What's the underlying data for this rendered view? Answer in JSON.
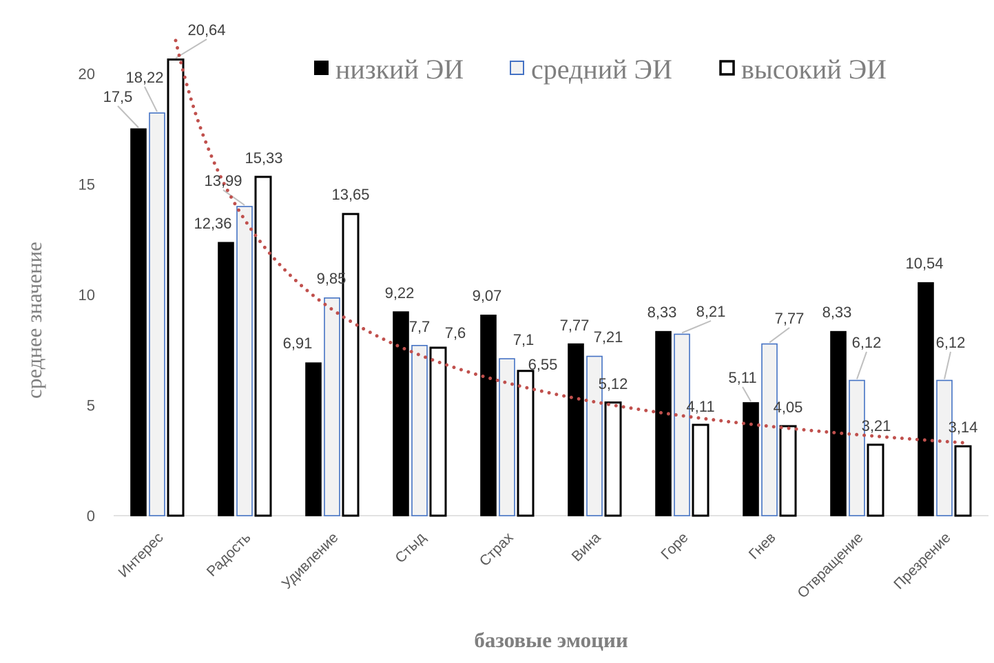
{
  "chart_data": {
    "type": "bar",
    "title": "",
    "xlabel": "базовые эмоции",
    "ylabel": "среднее значение",
    "ylim": [
      0,
      22
    ],
    "yticks": [
      0,
      5,
      10,
      15,
      20
    ],
    "grid": false,
    "legend_position": "top-right",
    "categories": [
      "Интерес",
      "Радость",
      "Удивление",
      "Стыд",
      "Страх",
      "Вина",
      "Горе",
      "Гнев",
      "Отвращение",
      "Презрение"
    ],
    "series": [
      {
        "name": "низкий ЭИ",
        "fill": "#000000",
        "stroke": "#000000",
        "values": [
          17.5,
          12.36,
          6.91,
          9.22,
          9.07,
          7.77,
          8.33,
          5.11,
          8.33,
          10.54
        ],
        "labels": [
          "17,5",
          "12,36",
          "6,91",
          "9,22",
          "9,07",
          "7,77",
          "8,33",
          "5,11",
          "8,33",
          "10,54"
        ]
      },
      {
        "name": "средний ЭИ",
        "fill": "#f2f2f2",
        "stroke": "#4472c4",
        "values": [
          18.22,
          13.99,
          9.85,
          7.7,
          7.1,
          7.21,
          8.21,
          7.77,
          6.12,
          6.12
        ],
        "labels": [
          "18,22",
          "13,99",
          "9,85",
          "7,7",
          "7,1",
          "7,21",
          "8,21",
          "7,77",
          "6,12",
          "6,12"
        ]
      },
      {
        "name": "высокий ЭИ",
        "fill": "#ffffff",
        "stroke": "#000000",
        "values": [
          20.64,
          15.33,
          13.65,
          7.6,
          6.55,
          5.12,
          4.11,
          4.05,
          3.21,
          3.14
        ],
        "labels": [
          "20,64",
          "15,33",
          "13,65",
          "7,6",
          "6,55",
          "5,12",
          "4,11",
          "4,05",
          "3,21",
          "3,14"
        ]
      }
    ],
    "trendline": {
      "series": "высокий ЭИ",
      "kind": "power",
      "a": 21.5,
      "b": -0.814,
      "color": "#c0504d"
    }
  }
}
